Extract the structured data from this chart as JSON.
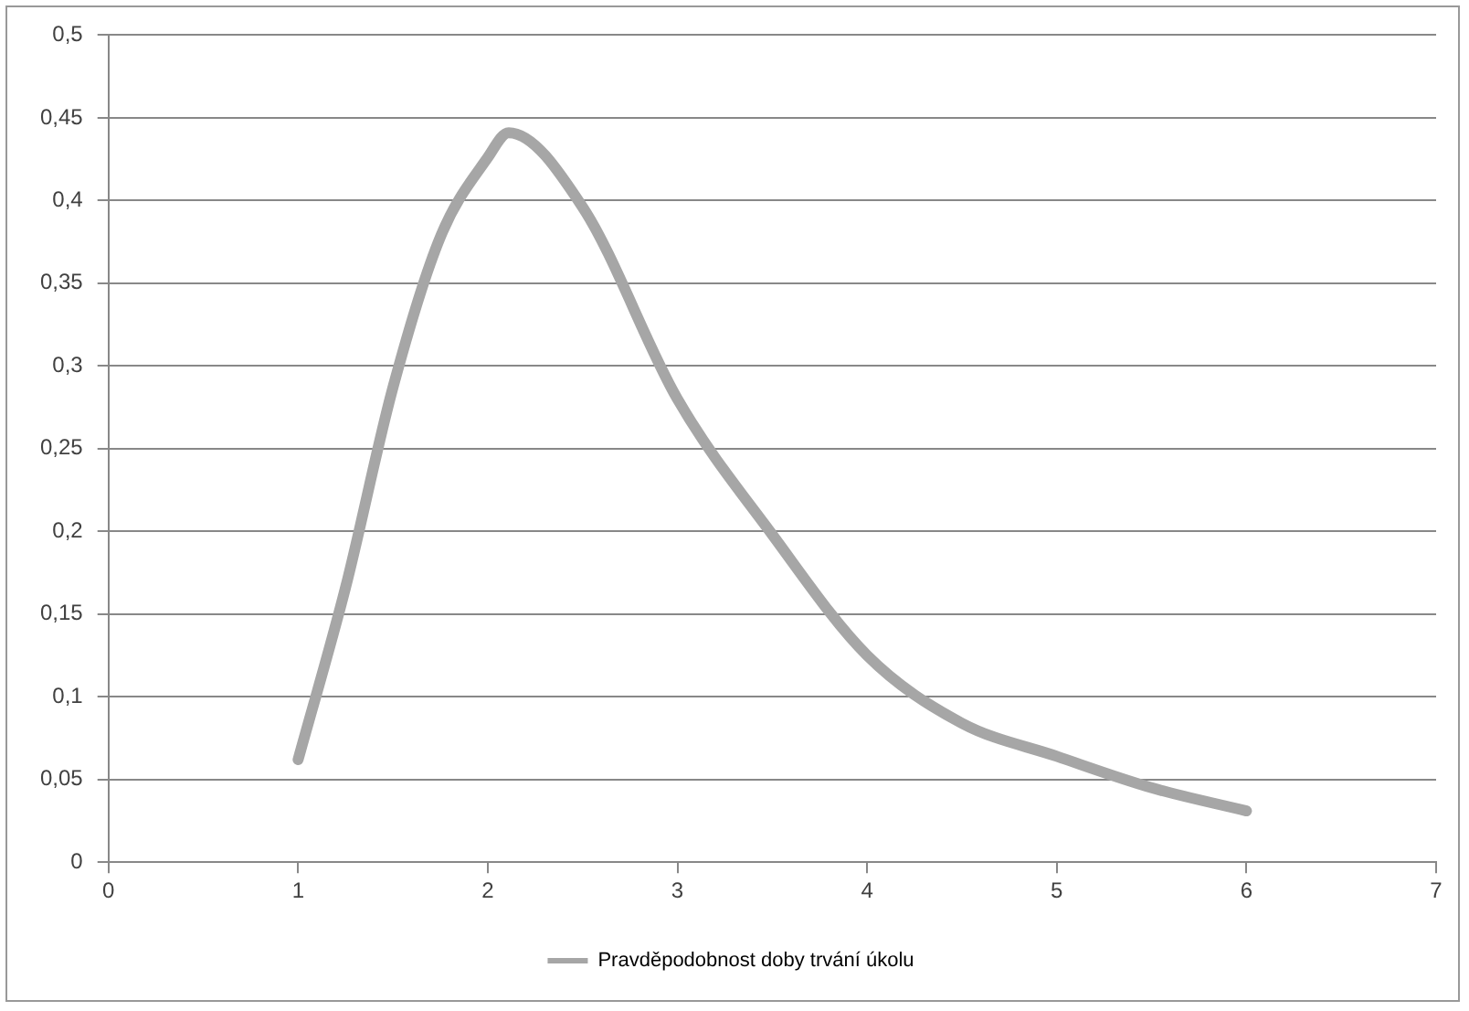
{
  "chart_data": {
    "type": "line",
    "x": [
      1,
      1.25,
      1.5,
      1.75,
      2,
      2.11,
      2.5,
      3,
      3.5,
      4,
      4.5,
      5,
      5.5,
      6
    ],
    "series": [
      {
        "name": "Pravděpodobnost doby trvání úkolu",
        "color": "#a6a6a6",
        "values": [
          0.062,
          0.166,
          0.287,
          0.378,
          0.426,
          0.441,
          0.396,
          0.28,
          0.198,
          0.125,
          0.084,
          0.064,
          0.045,
          0.031
        ]
      }
    ],
    "xlim": [
      0,
      7
    ],
    "xticks": [
      0,
      1,
      2,
      3,
      4,
      5,
      6,
      7
    ],
    "ylim": [
      0,
      0.5
    ],
    "yticks": [
      {
        "value": 0,
        "label": "0"
      },
      {
        "value": 0.05,
        "label": "0,05"
      },
      {
        "value": 0.1,
        "label": "0,1"
      },
      {
        "value": 0.15,
        "label": "0,15"
      },
      {
        "value": 0.2,
        "label": "0,2"
      },
      {
        "value": 0.25,
        "label": "0,25"
      },
      {
        "value": 0.3,
        "label": "0,3"
      },
      {
        "value": 0.35,
        "label": "0,35"
      },
      {
        "value": 0.4,
        "label": "0,4"
      },
      {
        "value": 0.45,
        "label": "0,45"
      },
      {
        "value": 0.5,
        "label": "0,5"
      }
    ],
    "grid": "y",
    "legend": "bottom",
    "marker": "none",
    "line_style": "solid"
  }
}
